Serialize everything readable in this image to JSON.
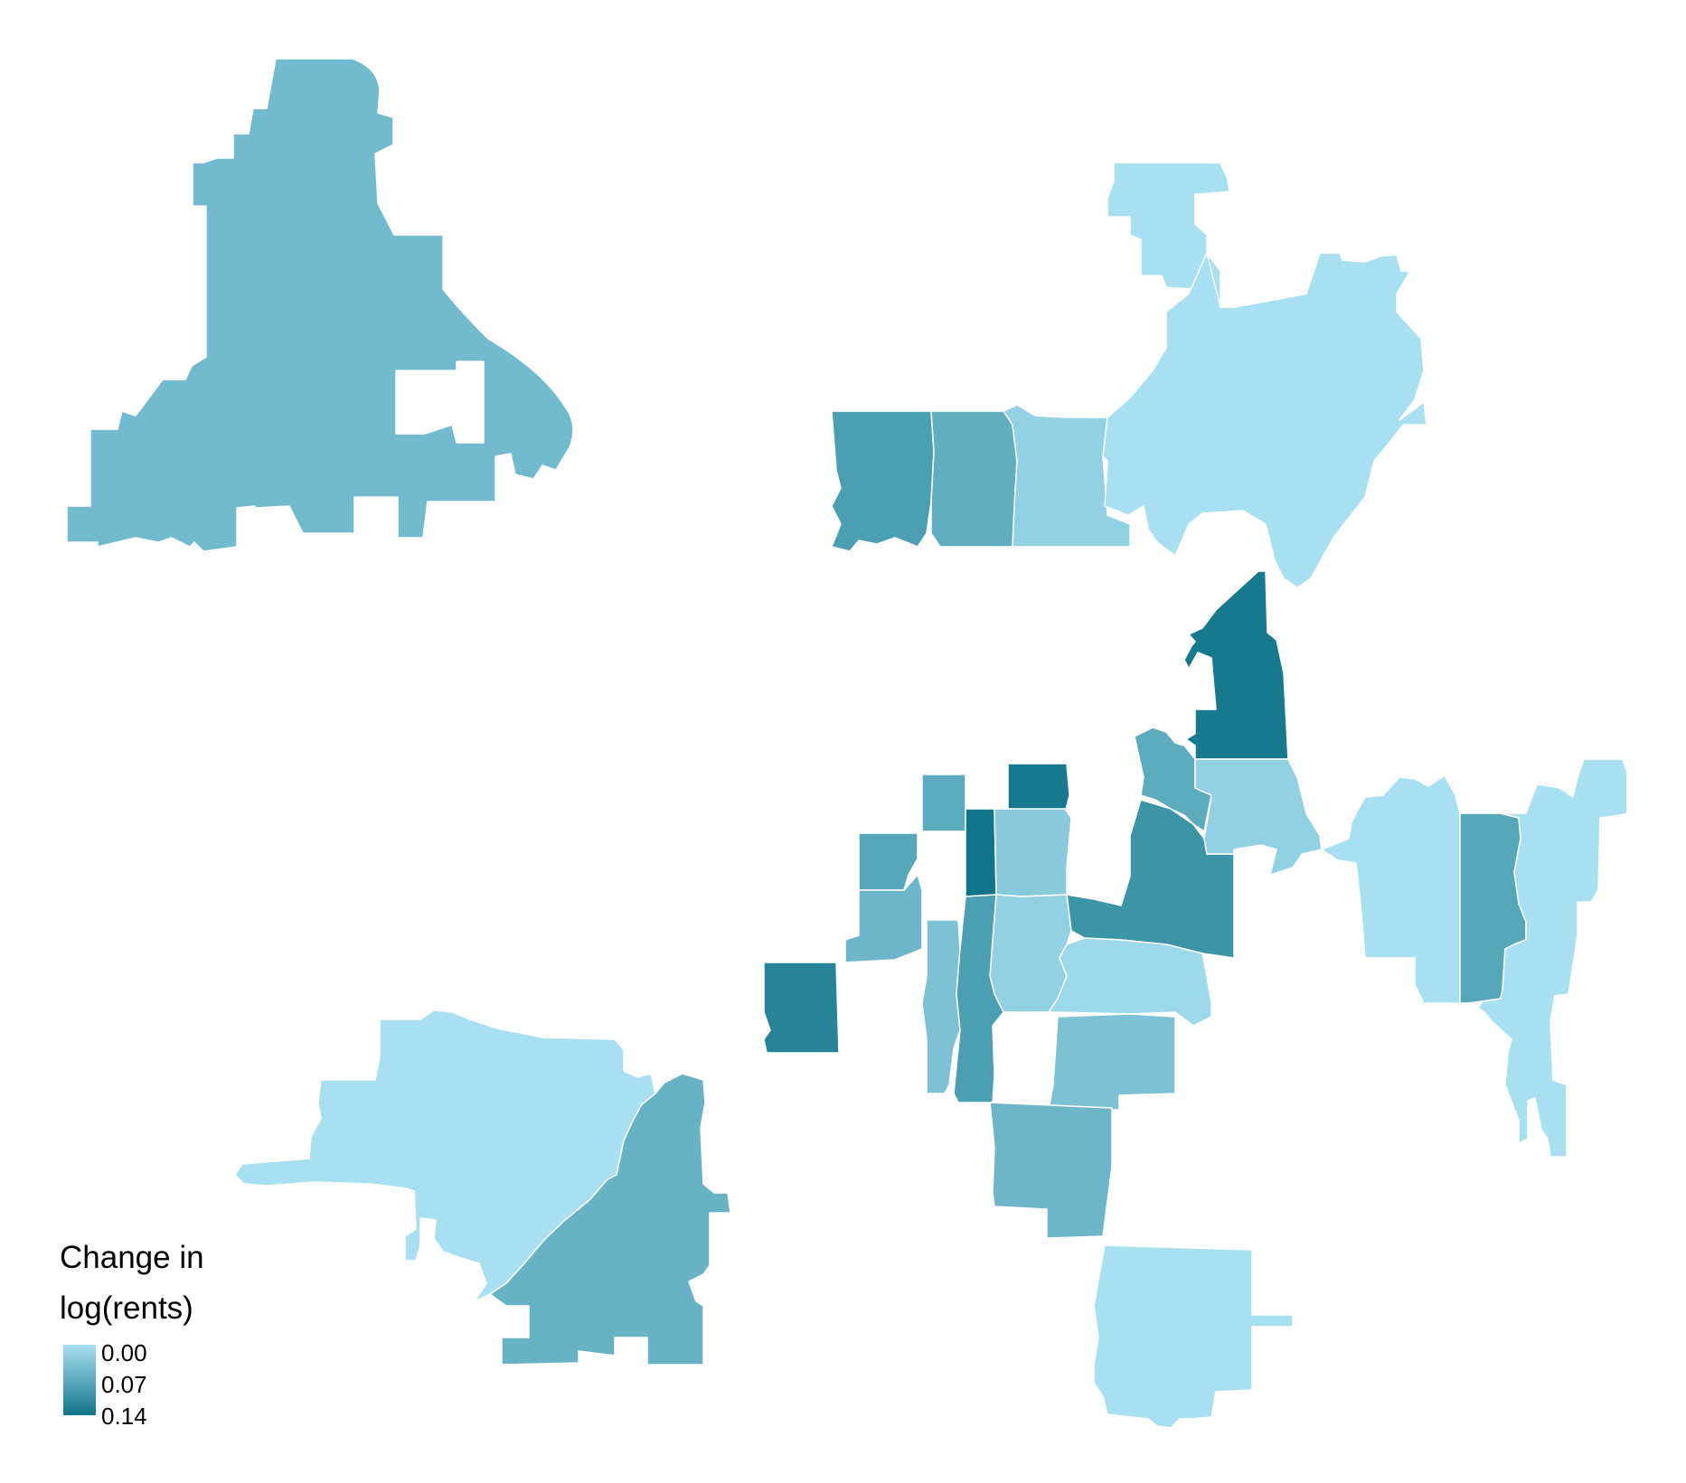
{
  "legend": {
    "title_line1": "Change in",
    "title_line2": "log(rents)",
    "ticks": [
      "0.00",
      "0.07",
      "0.14"
    ],
    "scale_low_color": "#a8e0f2",
    "scale_high_color": "#117589",
    "value_min": 0.0,
    "value_max": 0.14
  },
  "regions": [
    {
      "name": "northwest-large-region",
      "value": 0.05
    },
    {
      "name": "north-center-west-block",
      "value": 0.085
    },
    {
      "name": "north-center-middle-block",
      "value": 0.065
    },
    {
      "name": "north-center-east-block",
      "value": 0.02
    },
    {
      "name": "northeast-small-region",
      "value": 0.0
    },
    {
      "name": "northeast-large-region",
      "value": 0.0
    },
    {
      "name": "central-peninsula-region",
      "value": 0.135
    },
    {
      "name": "central-small-top-block",
      "value": 0.07
    },
    {
      "name": "central-dark-top-block",
      "value": 0.135
    },
    {
      "name": "central-west-upper-block",
      "value": 0.075
    },
    {
      "name": "central-west-lower-block",
      "value": 0.055
    },
    {
      "name": "central-narrow-dark-strip",
      "value": 0.14
    },
    {
      "name": "central-light-block",
      "value": 0.03
    },
    {
      "name": "central-teal-north-block",
      "value": 0.07
    },
    {
      "name": "central-east-medium-block",
      "value": 0.1
    },
    {
      "name": "central-east-light-block",
      "value": 0.02
    },
    {
      "name": "central-middle-light-block",
      "value": 0.02
    },
    {
      "name": "central-thin-strip-west",
      "value": 0.04
    },
    {
      "name": "central-thin-strip-east",
      "value": 0.085
    },
    {
      "name": "central-south-block",
      "value": 0.01
    },
    {
      "name": "central-southeast-block",
      "value": 0.04
    },
    {
      "name": "southwest-dark-block",
      "value": 0.12
    },
    {
      "name": "south-center-block",
      "value": 0.055
    },
    {
      "name": "south-light-block",
      "value": 0.0
    },
    {
      "name": "southwest-large-light-region",
      "value": 0.0
    },
    {
      "name": "southwest-medium-region",
      "value": 0.06
    },
    {
      "name": "east-region-west",
      "value": 0.0
    },
    {
      "name": "east-region-strip",
      "value": 0.075
    },
    {
      "name": "east-region-east",
      "value": 0.0
    }
  ]
}
